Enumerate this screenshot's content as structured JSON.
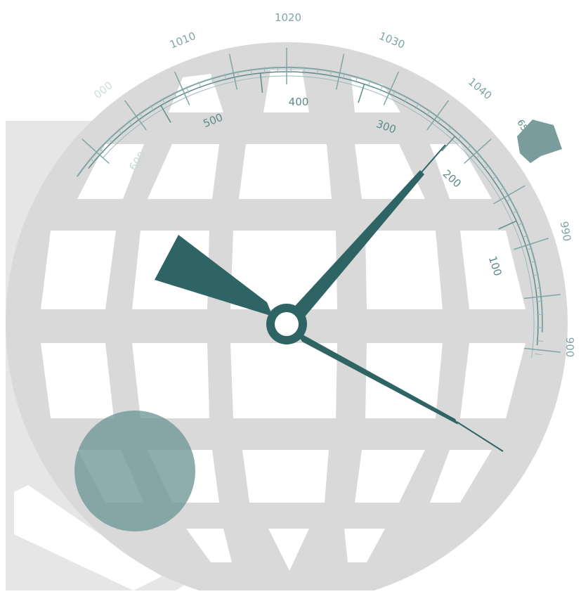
{
  "gauge": {
    "outer_scale": {
      "labels": [
        "1010",
        "1020",
        "1030",
        "1040",
        "990",
        "900"
      ],
      "partial_labels": [
        "000",
        "650"
      ]
    },
    "inner_scale": {
      "labels": [
        "500",
        "400",
        "300",
        "200",
        "100"
      ],
      "partial_labels": [
        "600"
      ]
    }
  },
  "colors": {
    "globe": "#d9d9d9",
    "globe_cells": "#ffffff",
    "backdrop": "#e6e6e6",
    "needle": "#2f6464",
    "scale_outer": "#7fa5a5",
    "scale_inner": "#5e8a8a",
    "accent_circle": "#6e9696",
    "clip": "#7a9c9c"
  }
}
